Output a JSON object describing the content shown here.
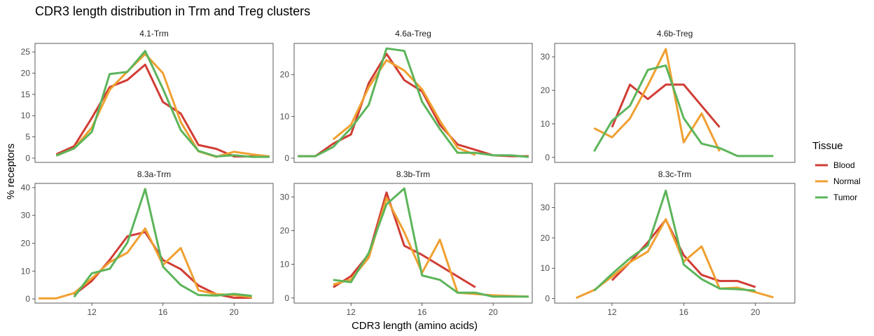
{
  "chart_data": {
    "type": "line",
    "title": "CDR3 length distribution in Trm and Treg clusters",
    "xlabel": "CDR3 length (amino acids)",
    "ylabel": "% receptors",
    "legend": {
      "title": "Tissue",
      "placement": "right",
      "entries": [
        "Blood",
        "Normal",
        "Tumor"
      ]
    },
    "colors": {
      "Blood": "#D03D35",
      "Normal": "#EFA030",
      "Tumor": "#5CB55A"
    },
    "xlim": [
      8.8,
      22.2
    ],
    "x_ticks_top_row": [],
    "x_ticks_bottom_row": [
      12,
      16,
      20
    ],
    "grid": false,
    "panels": [
      {
        "name": "4.1-Trm",
        "ylim": [
          -1,
          27
        ],
        "y_ticks": [
          0,
          5,
          10,
          15,
          20,
          25
        ],
        "series": [
          {
            "name": "Blood",
            "x": [
              10,
              11,
              12,
              13,
              14,
              15,
              16,
              17,
              18,
              19,
              20,
              21,
              22
            ],
            "y": [
              0.9,
              2.8,
              9.5,
              16.7,
              18.4,
              22,
              13.2,
              10.5,
              3.1,
              2.2,
              0.4,
              0.4,
              0.4
            ]
          },
          {
            "name": "Normal",
            "x": [
              10,
              11,
              12,
              13,
              14,
              15,
              16,
              17,
              18,
              19,
              20,
              21,
              22
            ],
            "y": [
              0.6,
              2.3,
              7.2,
              16.1,
              20.4,
              24.5,
              20,
              8.5,
              1.6,
              0.3,
              1.5,
              0.9,
              0.4
            ]
          },
          {
            "name": "Tumor",
            "x": [
              10,
              11,
              12,
              13,
              14,
              15,
              16,
              17,
              18,
              19,
              20,
              21,
              22
            ],
            "y": [
              0.6,
              2.3,
              6.2,
              19.8,
              20.3,
              25.2,
              16.3,
              6.6,
              1.7,
              0.4,
              0.7,
              0.3,
              0.3
            ]
          }
        ]
      },
      {
        "name": "4.6a-Treg",
        "ylim": [
          -1,
          27.5
        ],
        "y_ticks": [
          0,
          10,
          20
        ],
        "series": [
          {
            "name": "Blood",
            "x": [
              9,
              10,
              11,
              12,
              13,
              14,
              15,
              16,
              17,
              18,
              19,
              20,
              21,
              22
            ],
            "y": [
              0.5,
              0.5,
              3.5,
              5.7,
              18,
              25,
              18.7,
              16,
              8,
              3.3,
              2,
              0.7,
              0.5,
              0.5
            ]
          },
          {
            "name": "Normal",
            "x": [
              11,
              12,
              13,
              14,
              15,
              16,
              17,
              18,
              19
            ],
            "y": [
              4.5,
              8,
              17,
              23.5,
              21,
              16.5,
              9,
              2.5,
              0.8
            ]
          },
          {
            "name": "Tumor",
            "x": [
              9,
              10,
              11,
              12,
              13,
              14,
              15,
              16,
              17,
              18,
              19,
              20,
              21,
              22
            ],
            "y": [
              0.5,
              0.5,
              2.7,
              7.2,
              12.8,
              26.3,
              25.7,
              13.5,
              7,
              1.3,
              1.3,
              0.7,
              0.7,
              0.3
            ]
          }
        ]
      },
      {
        "name": "4.6b-Treg",
        "ylim": [
          -1.5,
          34
        ],
        "y_ticks": [
          0,
          10,
          20,
          30
        ],
        "series": [
          {
            "name": "Blood",
            "x": [
              12,
              13,
              14,
              15,
              16,
              18
            ],
            "y": [
              9,
              21.7,
              17.4,
              21.7,
              21.7,
              9
            ]
          },
          {
            "name": "Normal",
            "x": [
              11,
              12,
              13,
              14,
              15,
              16,
              17,
              18
            ],
            "y": [
              8.7,
              6,
              11.6,
              21.5,
              32.3,
              4.5,
              13.1,
              1.8
            ]
          },
          {
            "name": "Tumor",
            "x": [
              11,
              12,
              13,
              14,
              15,
              16,
              17,
              18,
              19,
              20,
              21
            ],
            "y": [
              1.8,
              10.9,
              15.4,
              26.1,
              27.4,
              11.7,
              4.1,
              2.8,
              0.4,
              0.4,
              0.4
            ]
          }
        ]
      },
      {
        "name": "8.3a-Trm",
        "ylim": [
          -1.5,
          41.5
        ],
        "y_ticks": [
          0,
          10,
          20,
          30,
          40
        ],
        "series": [
          {
            "name": "Blood",
            "x": [
              11,
              12,
              13,
              14,
              15,
              16,
              17,
              18,
              19,
              20,
              21
            ],
            "y": [
              1.5,
              6.5,
              14,
              22.5,
              24,
              14,
              10.7,
              4.8,
              1.7,
              0.4,
              0.4
            ]
          },
          {
            "name": "Normal",
            "x": [
              9,
              10,
              11,
              12,
              13,
              14,
              15,
              16,
              17,
              18,
              19,
              20,
              21
            ],
            "y": [
              0.2,
              0.2,
              2.1,
              7.4,
              13.2,
              16.6,
              25.3,
              12.2,
              18.3,
              3.1,
              1.7,
              1.4,
              0.6
            ]
          },
          {
            "name": "Tumor",
            "x": [
              11,
              12,
              13,
              14,
              15,
              16,
              17,
              18,
              19,
              20,
              21
            ],
            "y": [
              0.7,
              9.2,
              10.8,
              20.2,
              39.5,
              11.6,
              5,
              1.4,
              1.2,
              1.8,
              1.1
            ]
          }
        ]
      },
      {
        "name": "8.3b-Trm",
        "ylim": [
          -1.5,
          34
        ],
        "y_ticks": [
          0,
          10,
          20,
          30
        ],
        "series": [
          {
            "name": "Blood",
            "x": [
              11,
              12,
              13,
              14,
              15,
              16,
              19
            ],
            "y": [
              3.2,
              6.5,
              13,
              31.3,
              15.5,
              12.8,
              3.2
            ]
          },
          {
            "name": "Normal",
            "x": [
              11,
              12,
              13,
              14,
              15,
              16,
              17,
              18,
              20,
              22
            ],
            "y": [
              4,
              5.5,
              12,
              29.7,
              19.5,
              7.5,
              17.3,
              1.6,
              0.8,
              0.4
            ]
          },
          {
            "name": "Tumor",
            "x": [
              11,
              12,
              13,
              14,
              15,
              16,
              17,
              18,
              19,
              20,
              21,
              22
            ],
            "y": [
              5.4,
              4.7,
              13.4,
              27.8,
              32.5,
              6.7,
              5.4,
              1.6,
              1.6,
              0.4,
              0.4,
              0.4
            ]
          }
        ]
      },
      {
        "name": "8.3c-Trm",
        "ylim": [
          -1.5,
          38
        ],
        "y_ticks": [
          0,
          10,
          20,
          30
        ],
        "series": [
          {
            "name": "Blood",
            "x": [
              12,
              13,
              14,
              15,
              16,
              17,
              18,
              19,
              20
            ],
            "y": [
              6,
              12,
              18.6,
              26,
              14.3,
              7.8,
              5.8,
              5.8,
              3.8
            ]
          },
          {
            "name": "Normal",
            "x": [
              10,
              11,
              12,
              13,
              14,
              15,
              16,
              17,
              18,
              19,
              20,
              21
            ],
            "y": [
              0.2,
              2.8,
              7.2,
              12,
              15.5,
              26.2,
              12.2,
              17.2,
              3.3,
              3.6,
              2.1,
              0.4
            ]
          },
          {
            "name": "Tumor",
            "x": [
              11,
              12,
              13,
              14,
              15,
              16,
              17,
              18,
              19,
              20
            ],
            "y": [
              2.6,
              8.1,
              13.3,
              17.5,
              35.6,
              11.2,
              6.4,
              3.3,
              3.1,
              2.6
            ]
          }
        ]
      }
    ]
  }
}
